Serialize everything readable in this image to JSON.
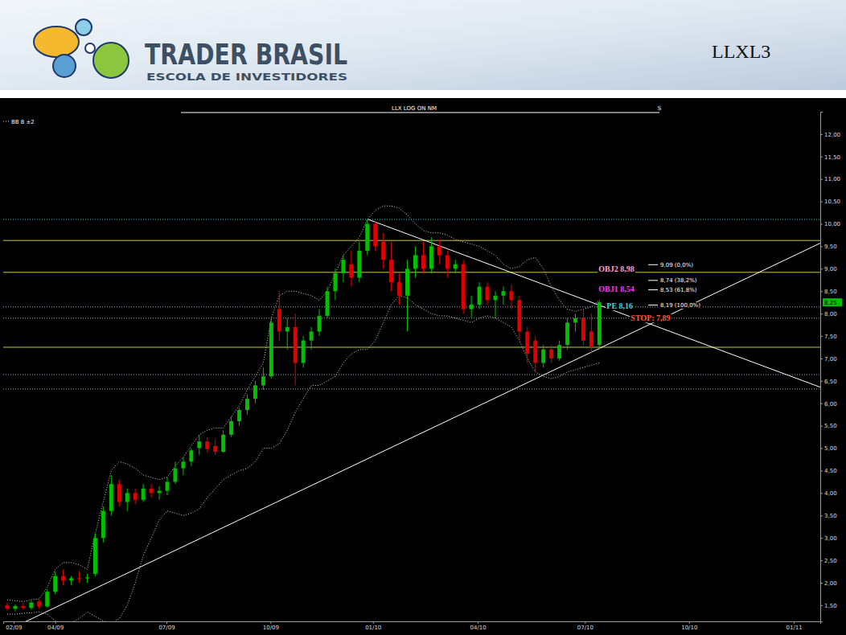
{
  "header": {
    "brand": "TRADER BRASIL",
    "tagline": "ESCOLA DE INVESTIDORES",
    "ticker": "LLXL3"
  },
  "chart_data": {
    "type": "candlestick",
    "title": "LLX LOG ON NM",
    "subtitle": "S",
    "grid": false,
    "x": [
      0,
      1,
      2,
      3,
      4,
      5,
      6,
      7,
      8,
      9,
      10,
      11,
      12,
      13,
      14,
      15,
      16,
      17,
      18,
      19,
      20,
      21,
      22,
      23,
      24,
      25,
      26,
      27,
      28,
      29,
      30,
      31,
      32,
      33,
      34,
      35,
      36,
      37,
      38,
      39,
      40,
      41,
      42,
      43,
      44,
      45,
      46,
      47,
      48,
      49,
      50,
      51,
      52,
      53,
      54,
      55,
      56,
      57,
      58,
      59,
      60,
      61,
      62,
      63,
      64,
      65,
      66,
      67,
      68,
      69,
      70,
      71,
      72,
      73,
      74
    ],
    "open": [
      1.5,
      1.42,
      1.48,
      1.44,
      1.58,
      1.47,
      1.8,
      2.15,
      2.05,
      2.1,
      2.1,
      2.2,
      3.0,
      3.6,
      4.2,
      3.8,
      4.0,
      3.85,
      4.1,
      4.0,
      4.05,
      4.25,
      4.55,
      4.7,
      5.0,
      5.15,
      5.05,
      4.92,
      5.3,
      5.6,
      5.85,
      6.1,
      6.4,
      6.6,
      8.1,
      7.6,
      7.7,
      6.9,
      7.4,
      7.6,
      7.95,
      8.5,
      8.9,
      9.1,
      8.8,
      9.4,
      10.0,
      9.6,
      9.2,
      8.7,
      8.4,
      9.0,
      9.3,
      9.0,
      9.5,
      9.3,
      9.0,
      9.1,
      8.1,
      8.2,
      8.6,
      8.3,
      8.4,
      8.5,
      8.3,
      7.6,
      7.4,
      6.9,
      7.2,
      7.0,
      7.3,
      7.8,
      7.9,
      7.6,
      7.3
    ],
    "high": [
      1.55,
      1.52,
      1.55,
      1.6,
      1.62,
      1.85,
      2.25,
      2.3,
      2.15,
      2.25,
      2.2,
      3.1,
      3.7,
      4.4,
      4.3,
      4.1,
      4.1,
      4.2,
      4.2,
      4.15,
      4.35,
      4.7,
      4.8,
      5.0,
      5.3,
      5.25,
      5.2,
      5.4,
      5.7,
      5.9,
      6.2,
      6.5,
      6.8,
      7.9,
      8.5,
      7.9,
      8.0,
      7.5,
      7.7,
      8.1,
      8.6,
      9.0,
      9.3,
      9.4,
      9.6,
      10.1,
      10.05,
      9.8,
      9.6,
      8.9,
      9.2,
      9.5,
      9.6,
      9.7,
      9.65,
      9.4,
      9.2,
      9.2,
      8.4,
      8.7,
      8.7,
      8.5,
      8.6,
      8.65,
      8.4,
      7.7,
      7.5,
      7.3,
      7.3,
      7.4,
      7.9,
      8.0,
      8.1,
      8.0,
      8.3
    ],
    "low": [
      1.38,
      1.36,
      1.4,
      1.4,
      1.42,
      1.45,
      1.75,
      1.95,
      1.95,
      2.0,
      2.0,
      2.15,
      2.9,
      3.5,
      3.7,
      3.6,
      3.75,
      3.8,
      3.9,
      3.85,
      3.95,
      4.2,
      4.4,
      4.6,
      4.85,
      4.9,
      4.85,
      4.9,
      5.25,
      5.5,
      5.75,
      6.0,
      6.3,
      6.55,
      7.4,
      7.2,
      6.4,
      6.8,
      7.2,
      7.5,
      7.9,
      8.3,
      8.7,
      8.6,
      8.7,
      9.3,
      9.4,
      9.0,
      8.5,
      8.2,
      7.6,
      8.8,
      8.9,
      8.9,
      9.1,
      8.8,
      8.9,
      8.0,
      7.9,
      8.1,
      8.2,
      7.9,
      8.2,
      8.1,
      7.4,
      6.9,
      6.7,
      6.8,
      6.9,
      6.95,
      7.2,
      7.6,
      7.3,
      7.1,
      7.2
    ],
    "close": [
      1.42,
      1.48,
      1.44,
      1.56,
      1.47,
      1.8,
      2.15,
      2.05,
      2.1,
      2.08,
      2.12,
      3.0,
      3.6,
      4.2,
      3.8,
      4.0,
      3.85,
      4.1,
      4.0,
      4.05,
      4.25,
      4.55,
      4.7,
      4.95,
      5.15,
      4.98,
      4.92,
      5.3,
      5.6,
      5.85,
      6.1,
      6.4,
      6.6,
      7.8,
      7.6,
      7.7,
      6.9,
      7.4,
      7.6,
      7.95,
      8.5,
      8.9,
      9.2,
      8.8,
      9.4,
      10.0,
      9.5,
      9.2,
      8.7,
      8.4,
      9.0,
      9.3,
      9.0,
      9.5,
      9.3,
      9.0,
      9.1,
      8.1,
      8.2,
      8.6,
      8.3,
      8.4,
      8.5,
      8.3,
      7.6,
      7.1,
      6.9,
      7.2,
      7.0,
      7.3,
      7.8,
      7.9,
      7.4,
      7.25,
      8.25
    ],
    "bollinger": {
      "name": "BB 8 ±2",
      "color": "#d8d8d8",
      "line_style": "dotted",
      "upper": [
        1.62,
        1.6,
        1.58,
        1.62,
        1.64,
        1.9,
        2.3,
        2.45,
        2.45,
        2.4,
        2.3,
        3.1,
        3.8,
        4.5,
        4.7,
        4.65,
        4.55,
        4.4,
        4.35,
        4.3,
        4.35,
        4.6,
        4.8,
        5.05,
        5.3,
        5.4,
        5.45,
        5.45,
        5.7,
        5.95,
        6.3,
        6.6,
        6.9,
        7.9,
        8.4,
        8.5,
        8.5,
        8.45,
        8.4,
        8.3,
        8.5,
        8.9,
        9.3,
        9.5,
        9.7,
        10.1,
        10.3,
        10.4,
        10.4,
        10.35,
        10.2,
        10.0,
        9.85,
        9.8,
        9.8,
        9.75,
        9.65,
        9.6,
        9.55,
        9.5,
        9.4,
        9.3,
        9.1,
        9.0,
        9.05,
        9.2,
        9.25,
        9.0,
        8.6,
        8.3,
        8.1,
        8.05,
        8.1,
        8.15,
        8.3
      ],
      "lower": [
        1.3,
        1.3,
        1.32,
        1.33,
        1.35,
        1.3,
        1.15,
        1.1,
        1.12,
        1.2,
        1.35,
        1.25,
        1.15,
        1.1,
        1.2,
        1.5,
        2.0,
        2.6,
        3.0,
        3.4,
        3.6,
        3.55,
        3.5,
        3.55,
        3.65,
        3.9,
        4.1,
        4.3,
        4.4,
        4.5,
        4.55,
        4.7,
        5.0,
        5.0,
        5.1,
        5.4,
        5.8,
        6.1,
        6.4,
        6.4,
        6.5,
        6.6,
        6.9,
        7.1,
        7.2,
        7.2,
        7.4,
        7.8,
        8.2,
        8.4,
        8.35,
        8.2,
        8.1,
        8.0,
        7.95,
        7.95,
        7.9,
        7.85,
        7.8,
        7.9,
        7.95,
        7.9,
        7.8,
        7.7,
        7.4,
        7.0,
        6.7,
        6.6,
        6.55,
        6.6,
        6.7,
        6.75,
        6.8,
        6.85,
        6.9
      ]
    },
    "levels": [
      {
        "value": 10.1,
        "color": "#33cccc",
        "line_style": "dotted"
      },
      {
        "value": 9.63,
        "color": "#c8c84a",
        "line_style": "solid"
      },
      {
        "value": 8.92,
        "color": "#c8c84a",
        "line_style": "solid"
      },
      {
        "value": 8.15,
        "color": "#9aa9c0",
        "line_style": "dotted"
      },
      {
        "value": 7.9,
        "color": "#9aa9c0",
        "line_style": "dotted"
      },
      {
        "value": 7.25,
        "color": "#c8c84a",
        "line_style": "solid"
      },
      {
        "value": 6.64,
        "color": "#9aa9c0",
        "line_style": "dotted"
      },
      {
        "value": 6.32,
        "color": "#9aa9c0",
        "line_style": "dotted"
      }
    ],
    "trendlines": [
      {
        "x": [
          1.9,
          101.6
        ],
        "values": [
          1.1,
          9.57
        ],
        "color": "#ffffff",
        "line_style": "solid"
      },
      {
        "x": [
          45.1,
          101.6
        ],
        "values": [
          10.1,
          6.36
        ],
        "color": "#ffffff",
        "line_style": "solid"
      }
    ],
    "annotations": [
      {
        "text": "OBJ2 8,98",
        "value": 8.98,
        "color": "#ff9fd0"
      },
      {
        "text": "OBJ1 8,54",
        "value": 8.54,
        "color": "#ff33ff"
      },
      {
        "text": "PE 8,16",
        "value": 8.16,
        "color": "#33dddd"
      },
      {
        "text": "STOP: 7,89",
        "value": 7.89,
        "color": "#ff5a3c"
      }
    ],
    "fibonacci": [
      {
        "value": 9.09,
        "label": "9,09 (0,0%)"
      },
      {
        "value": 8.74,
        "label": "8,74 (38,2%)"
      },
      {
        "value": 8.53,
        "label": "8,53 (61,8%)"
      },
      {
        "value": 8.19,
        "label": "8,19 (100,0%)"
      }
    ],
    "last_price": {
      "value": 8.25,
      "label": "8,25"
    },
    "xlim": [
      -0.5,
      101.6
    ],
    "xticks": [
      {
        "value": 0.8,
        "label": "02/09"
      },
      {
        "value": 6.0,
        "label": "04/09"
      },
      {
        "value": 19.9,
        "label": "07/09"
      },
      {
        "value": 32.9,
        "label": "10/09"
      },
      {
        "value": 45.7,
        "label": "01/10"
      },
      {
        "value": 58.8,
        "label": "04/10"
      },
      {
        "value": 72.2,
        "label": "07/10"
      },
      {
        "value": 85.2,
        "label": "10/10"
      },
      {
        "value": 98.3,
        "label": "01/11"
      }
    ],
    "ylim": [
      1.14,
      12.5
    ],
    "yticks": [
      {
        "value": 1.5,
        "label": "1,50"
      },
      {
        "value": 2.0,
        "label": "2,00"
      },
      {
        "value": 2.5,
        "label": "2,50"
      },
      {
        "value": 3.0,
        "label": "3,00"
      },
      {
        "value": 3.5,
        "label": "3,50"
      },
      {
        "value": 4.0,
        "label": "4,00"
      },
      {
        "value": 4.5,
        "label": "4,50"
      },
      {
        "value": 5.0,
        "label": "5,00"
      },
      {
        "value": 5.5,
        "label": "5,50"
      },
      {
        "value": 6.0,
        "label": "6,00"
      },
      {
        "value": 6.5,
        "label": "6,50"
      },
      {
        "value": 7.0,
        "label": "7,00"
      },
      {
        "value": 7.5,
        "label": "7,50"
      },
      {
        "value": 8.0,
        "label": "8,00"
      },
      {
        "value": 8.5,
        "label": "8,50"
      },
      {
        "value": 9.0,
        "label": "9,00"
      },
      {
        "value": 9.5,
        "label": "9,50"
      },
      {
        "value": 10.0,
        "label": "10,00"
      },
      {
        "value": 10.5,
        "label": "10,50"
      },
      {
        "value": 11.0,
        "label": "11,00"
      },
      {
        "value": 11.5,
        "label": "11,50"
      },
      {
        "value": 12.0,
        "label": "12,00"
      }
    ]
  }
}
